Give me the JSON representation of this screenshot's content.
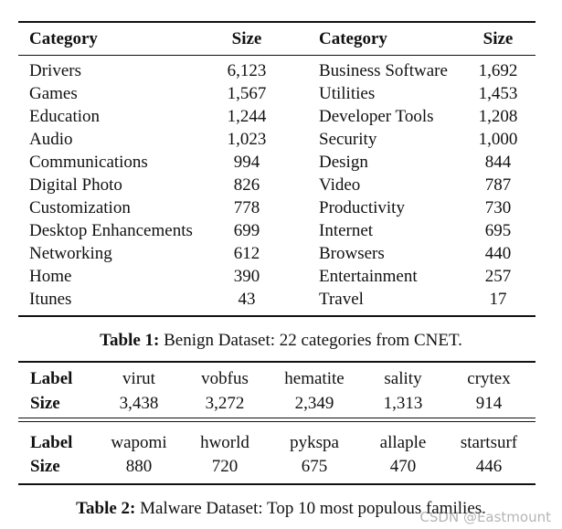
{
  "table1": {
    "header": [
      "Category",
      "Size",
      "Category",
      "Size"
    ],
    "rows": [
      [
        "Drivers",
        "6,123",
        "Business Software",
        "1,692"
      ],
      [
        "Games",
        "1,567",
        "Utilities",
        "1,453"
      ],
      [
        "Education",
        "1,244",
        "Developer Tools",
        "1,208"
      ],
      [
        "Audio",
        "1,023",
        "Security",
        "1,000"
      ],
      [
        "Communications",
        "994",
        "Design",
        "844"
      ],
      [
        "Digital Photo",
        "826",
        "Video",
        "787"
      ],
      [
        "Customization",
        "778",
        "Productivity",
        "730"
      ],
      [
        "Desktop Enhancements",
        "699",
        "Internet",
        "695"
      ],
      [
        "Networking",
        "612",
        "Browsers",
        "440"
      ],
      [
        "Home",
        "390",
        "Entertainment",
        "257"
      ],
      [
        "Itunes",
        "43",
        "Travel",
        "17"
      ]
    ]
  },
  "caption1": {
    "label": "Table 1:",
    "text": "Benign Dataset: 22 categories from CNET."
  },
  "table2": {
    "blocks": [
      {
        "label_header": "Label",
        "labels": [
          "virut",
          "vobfus",
          "hematite",
          "sality",
          "crytex"
        ],
        "size_header": "Size",
        "sizes": [
          "3,438",
          "3,272",
          "2,349",
          "1,313",
          "914"
        ]
      },
      {
        "label_header": "Label",
        "labels": [
          "wapomi",
          "hworld",
          "pykspa",
          "allaple",
          "startsurf"
        ],
        "size_header": "Size",
        "sizes": [
          "880",
          "720",
          "675",
          "470",
          "446"
        ]
      }
    ]
  },
  "caption2": {
    "label": "Table 2:",
    "text": "Malware Dataset: Top 10 most populous families."
  },
  "watermark": "CSDN @Eastmount"
}
